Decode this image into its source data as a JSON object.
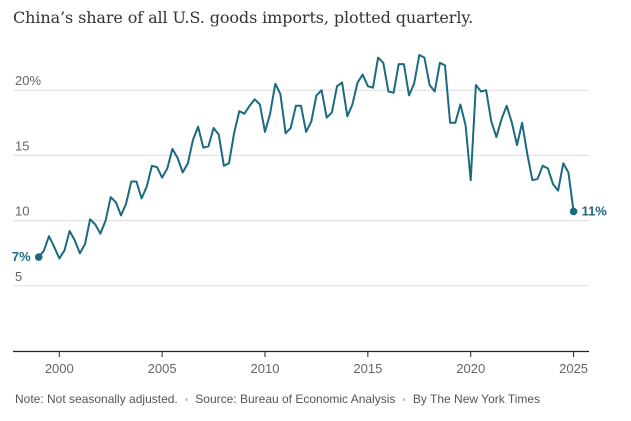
{
  "chart_data": {
    "type": "line",
    "title": "China’s share of all U.S. goods imports, plotted quarterly.",
    "xlabel": "",
    "ylabel": "",
    "ylim": [
      0,
      25
    ],
    "xlim": [
      1997.75,
      2025.75
    ],
    "y_ticks": [
      5,
      10,
      15,
      20
    ],
    "y_tick_labels": [
      "5",
      "10",
      "15",
      "20%"
    ],
    "x_ticks": [
      2000,
      2005,
      2010,
      2015,
      2020,
      2025
    ],
    "x_tick_labels": [
      "2000",
      "2005",
      "2010",
      "2015",
      "2020",
      "2025"
    ],
    "grid": "horizontal",
    "color": "#1a6a82",
    "start_label": "7%",
    "end_label": "11%",
    "x": [
      1999.0,
      1999.25,
      1999.5,
      1999.75,
      2000.0,
      2000.25,
      2000.5,
      2000.75,
      2001.0,
      2001.25,
      2001.5,
      2001.75,
      2002.0,
      2002.25,
      2002.5,
      2002.75,
      2003.0,
      2003.25,
      2003.5,
      2003.75,
      2004.0,
      2004.25,
      2004.5,
      2004.75,
      2005.0,
      2005.25,
      2005.5,
      2005.75,
      2006.0,
      2006.25,
      2006.5,
      2006.75,
      2007.0,
      2007.25,
      2007.5,
      2007.75,
      2008.0,
      2008.25,
      2008.5,
      2008.75,
      2009.0,
      2009.25,
      2009.5,
      2009.75,
      2010.0,
      2010.25,
      2010.5,
      2010.75,
      2011.0,
      2011.25,
      2011.5,
      2011.75,
      2012.0,
      2012.25,
      2012.5,
      2012.75,
      2013.0,
      2013.25,
      2013.5,
      2013.75,
      2014.0,
      2014.25,
      2014.5,
      2014.75,
      2015.0,
      2015.25,
      2015.5,
      2015.75,
      2016.0,
      2016.25,
      2016.5,
      2016.75,
      2017.0,
      2017.25,
      2017.5,
      2017.75,
      2018.0,
      2018.25,
      2018.5,
      2018.75,
      2019.0,
      2019.25,
      2019.5,
      2019.75,
      2020.0,
      2020.25,
      2020.5,
      2020.75,
      2021.0,
      2021.25,
      2021.5,
      2021.75,
      2022.0,
      2022.25,
      2022.5,
      2022.75,
      2023.0,
      2023.25,
      2023.5,
      2023.75,
      2024.0,
      2024.25,
      2024.5,
      2024.75,
      2025.0
    ],
    "values": [
      7.2,
      7.7,
      8.8,
      8.0,
      7.1,
      7.7,
      9.2,
      8.5,
      7.5,
      8.2,
      10.1,
      9.7,
      9.0,
      10.0,
      11.8,
      11.4,
      10.4,
      11.3,
      13.0,
      13.0,
      11.7,
      12.6,
      14.2,
      14.1,
      13.3,
      14.0,
      15.5,
      14.8,
      13.7,
      14.4,
      16.2,
      17.2,
      15.6,
      15.7,
      17.1,
      16.6,
      14.2,
      14.4,
      16.7,
      18.4,
      18.2,
      18.8,
      19.3,
      18.9,
      16.8,
      18.2,
      20.5,
      19.7,
      16.7,
      17.1,
      18.8,
      18.8,
      16.8,
      17.6,
      19.6,
      20.0,
      17.9,
      18.3,
      20.3,
      20.6,
      18.0,
      18.9,
      20.6,
      21.2,
      20.3,
      20.2,
      22.5,
      22.1,
      19.9,
      19.8,
      22.0,
      22.0,
      19.6,
      20.5,
      22.7,
      22.5,
      20.4,
      19.9,
      22.1,
      21.9,
      17.5,
      17.5,
      18.9,
      17.3,
      13.1,
      20.4,
      19.9,
      20.0,
      17.6,
      16.4,
      17.8,
      18.8,
      17.5,
      15.8,
      17.5,
      15.1,
      13.1,
      13.2,
      14.2,
      14.0,
      12.8,
      12.3,
      14.4,
      13.7,
      10.7
    ]
  },
  "footer": {
    "note": "Note: Not seasonally adjusted.",
    "source": "Source: Bureau of Economic Analysis",
    "credit": "By The New York Times",
    "separator": "•"
  }
}
